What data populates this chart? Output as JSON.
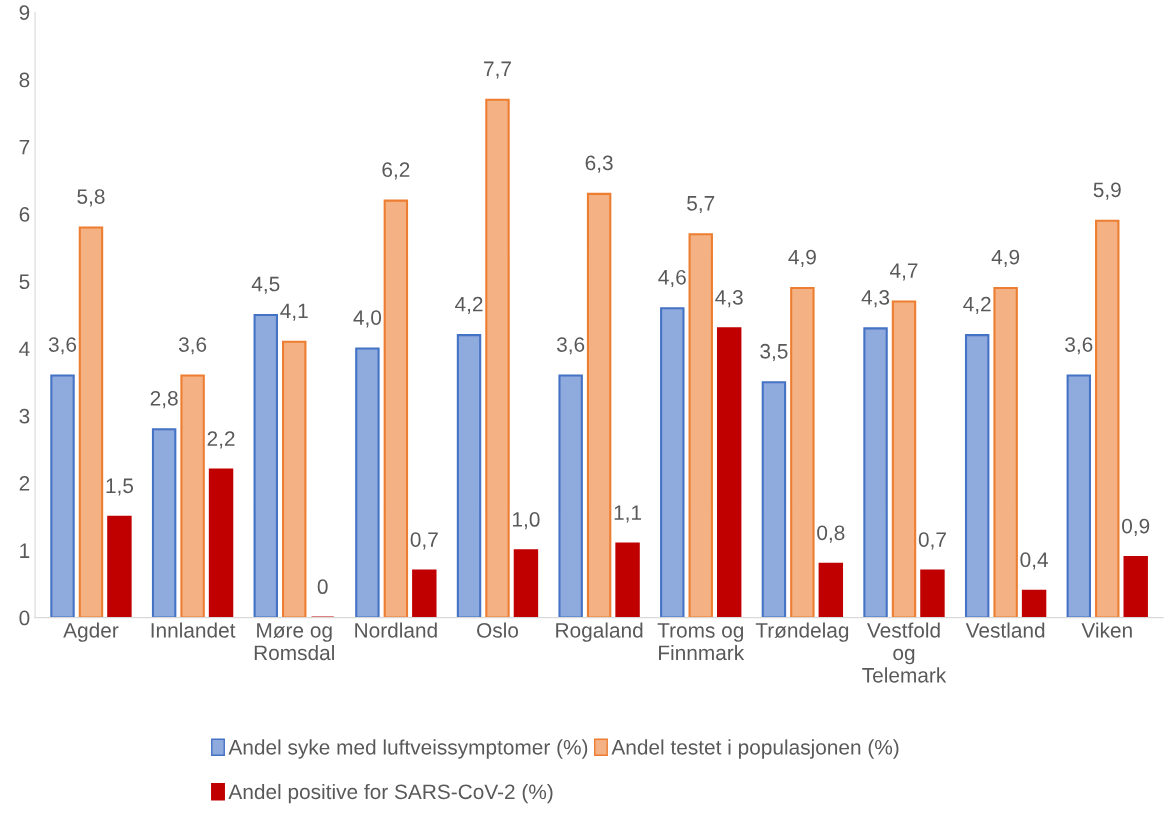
{
  "chart_data": {
    "type": "bar",
    "categories": [
      "Agder",
      "Innlandet",
      "Møre og Romsdal",
      "Nordland",
      "Oslo",
      "Rogaland",
      "Troms og Finnmark",
      "Trøndelag",
      "Vestfold og Telemark",
      "Vestland",
      "Viken"
    ],
    "series": [
      {
        "name": "Andel syke med luftveissymptomer (%)",
        "color": "#8faadc",
        "values": [
          3.6,
          2.8,
          4.5,
          4.0,
          4.2,
          3.6,
          4.6,
          3.5,
          4.3,
          4.2,
          3.6
        ],
        "value_labels": [
          "3,6",
          "2,8",
          "4,5",
          "4,0",
          "4,2",
          "3,6",
          "4,6",
          "3,5",
          "4,3",
          "4,2",
          "3,6"
        ]
      },
      {
        "name": "Andel testet i populasjonen (%)",
        "color": "#f4b183",
        "values": [
          5.8,
          3.6,
          4.1,
          6.2,
          7.7,
          6.3,
          5.7,
          4.9,
          4.7,
          4.9,
          5.9
        ],
        "value_labels": [
          "5,8",
          "3,6",
          "4,1",
          "6,2",
          "7,7",
          "6,3",
          "5,7",
          "4,9",
          "4,7",
          "4,9",
          "5,9"
        ]
      },
      {
        "name": "Andel positive for SARS-CoV-2 (%)",
        "color": "#c00000",
        "values": [
          1.5,
          2.2,
          0,
          0.7,
          1.0,
          1.1,
          4.3,
          0.8,
          0.7,
          0.4,
          0.9
        ],
        "value_labels": [
          "1,5",
          "2,2",
          "0",
          "0,7",
          "1,0",
          "1,1",
          "4,3",
          "0,8",
          "0,7",
          "0,4",
          "0,9"
        ]
      }
    ],
    "ylim": [
      0,
      9
    ],
    "yticks": [
      0,
      1,
      2,
      3,
      4,
      5,
      6,
      7,
      8,
      9
    ],
    "grid": false,
    "legend": "bottom"
  }
}
